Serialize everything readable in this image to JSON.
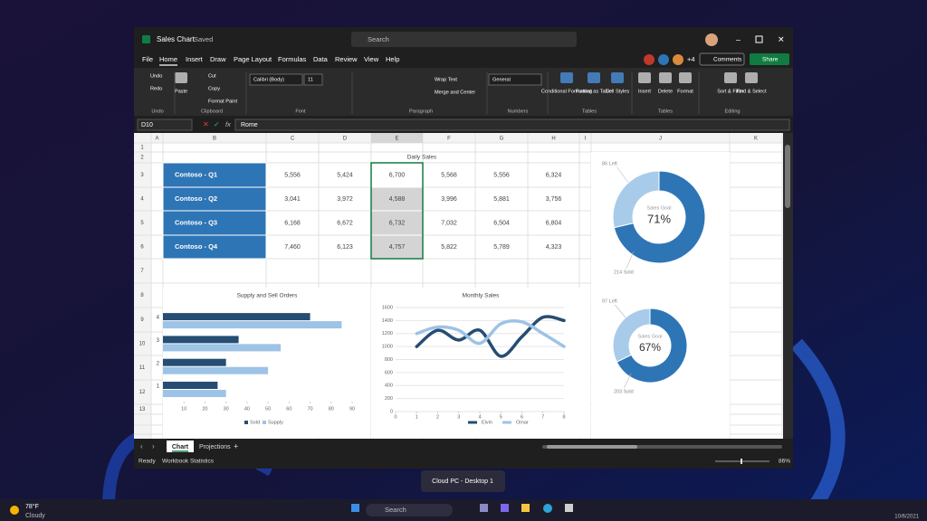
{
  "window": {
    "app_title": "Sales Chart",
    "save_status": "Saved",
    "search": "Search",
    "user_count": "+4",
    "comments": "Comments",
    "share": "Share"
  },
  "menu": [
    "File",
    "Home",
    "Insert",
    "Draw",
    "Page Layout",
    "Formulas",
    "Data",
    "Review",
    "View",
    "Help"
  ],
  "ribbon": {
    "items": [
      "Undo",
      "Redo",
      "Paste",
      "Cut",
      "Copy",
      "Format Paint",
      "Calibri (Body)",
      "11",
      "Wrap Text",
      "Merge and Center",
      "General",
      "Conditional Formatting",
      "Format as Table",
      "Cell Styles",
      "Insert",
      "Delete",
      "Format",
      "Sort & Filter",
      "Find & Select"
    ],
    "groups": [
      "Undo",
      "Clipboard",
      "Font",
      "Paragraph",
      "Numbers",
      "Tables",
      "Tables",
      "Editing"
    ]
  },
  "formula_bar": {
    "name_box": "D10",
    "fx": "fx",
    "content": "Rome"
  },
  "columns": [
    "A",
    "B",
    "C",
    "D",
    "E",
    "F",
    "G",
    "H",
    "I",
    "J",
    "K"
  ],
  "rows": [
    "1",
    "2",
    "3",
    "4",
    "5",
    "6",
    "7",
    "8",
    "9",
    "10",
    "11",
    "12",
    "13"
  ],
  "table": {
    "title": "Daily Sales",
    "rows": [
      [
        "Contoso - Q1",
        "5,556",
        "5,424",
        "6,700",
        "5,568",
        "5,556",
        "6,324"
      ],
      [
        "Contoso - Q2",
        "3,041",
        "3,972",
        "4,588",
        "3,996",
        "5,881",
        "3,756"
      ],
      [
        "Contoso - Q3",
        "6,168",
        "6,672",
        "6,732",
        "7,032",
        "6,504",
        "6,804"
      ],
      [
        "Contoso - Q4",
        "7,460",
        "6,123",
        "4,757",
        "5,822",
        "5,789",
        "4,323"
      ]
    ]
  },
  "chart_data": [
    {
      "type": "bar",
      "orientation": "horizontal",
      "title": "Supply and Sell Orders",
      "categories": [
        "1",
        "2",
        "3",
        "4"
      ],
      "series": [
        {
          "name": "Sold",
          "color": "#264d73",
          "values": [
            26,
            30,
            36,
            70
          ]
        },
        {
          "name": "Supply",
          "color": "#9dc3e6",
          "values": [
            30,
            50,
            56,
            85
          ]
        }
      ],
      "xlim": [
        0,
        90
      ],
      "xticks": [
        10,
        20,
        30,
        40,
        50,
        60,
        70,
        80,
        90
      ],
      "legend": "bottom"
    },
    {
      "type": "line",
      "title": "Monthly Sales",
      "x": [
        1,
        2,
        3,
        4,
        5,
        6,
        7,
        8
      ],
      "series": [
        {
          "name": "Elvin",
          "color": "#264d73",
          "values": [
            1000,
            1250,
            1100,
            1250,
            850,
            1150,
            1450,
            1400
          ]
        },
        {
          "name": "Omar",
          "color": "#9dc3e6",
          "values": [
            1200,
            1300,
            1250,
            1050,
            1350,
            1380,
            1200,
            1000
          ]
        }
      ],
      "xlim": [
        0,
        8
      ],
      "xticks": [
        0,
        1,
        2,
        3,
        4,
        5,
        6,
        7,
        8
      ],
      "ylim": [
        0,
        1600
      ],
      "yticks": [
        0,
        200,
        400,
        600,
        800,
        1000,
        1200,
        1400,
        1600
      ],
      "grid": true,
      "legend": "bottom"
    },
    {
      "type": "donut",
      "center_label": "Sales Goal",
      "center_value": "71%",
      "labels": [
        "214 Sold",
        "86 Left"
      ],
      "values": [
        214,
        86
      ],
      "colors": [
        "#2e75b6",
        "#a9cbea"
      ]
    },
    {
      "type": "donut",
      "center_label": "Sales Goal",
      "center_value": "67%",
      "labels": [
        "203 Sold",
        "97 Left"
      ],
      "values": [
        203,
        97
      ],
      "colors": [
        "#2e75b6",
        "#a9cbea"
      ]
    }
  ],
  "sheet_tabs": [
    "Chart",
    "Projections"
  ],
  "status_bar": {
    "ready": "Ready",
    "stats": "Workbook Statistics",
    "zoom": "86%"
  },
  "tooltip": "Cloud PC - Desktop 1",
  "taskbar": {
    "temperature": "78°F",
    "weather": "Cloudy",
    "search": "Search",
    "date": "10/6/2021"
  }
}
